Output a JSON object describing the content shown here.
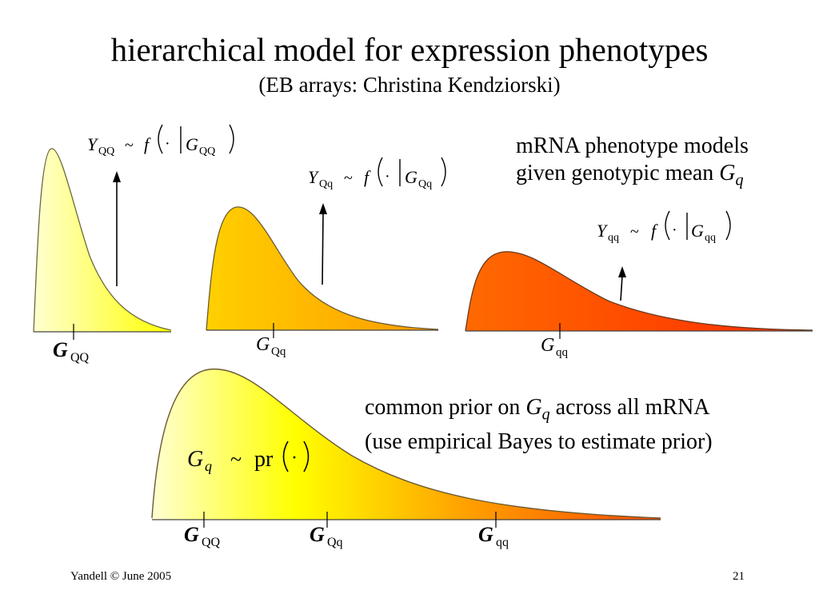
{
  "slide": {
    "title": "hierarchical model for expression phenotypes",
    "subtitle": "(EB arrays: Christina Kendziorski)",
    "note_top": {
      "line1": "mRNA phenotype models",
      "line2_prefix": "given genotypic mean ",
      "sym": "G",
      "sub": "q"
    },
    "note_bottom": {
      "prefix": "common prior on ",
      "sym": "G",
      "sub": "q",
      "suffix": " across all mRNA",
      "line2": "(use empirical Bayes to estimate prior)"
    },
    "footer": {
      "left": "Yandell © June 2005",
      "right": "21"
    }
  },
  "formulas": {
    "qq_upper": {
      "y": "Y",
      "ysub": "QQ",
      "tilde": "~",
      "f": "f",
      "dot": "·",
      "g": "G",
      "gsub": "QQ"
    },
    "qq_mid": {
      "y": "Y",
      "ysub": "Qq",
      "tilde": "~",
      "f": "f",
      "dot": "·",
      "g": "G",
      "gsub": "Qq"
    },
    "qq_lower": {
      "y": "Y",
      "ysub": "qq",
      "tilde": "~",
      "f": "f",
      "dot": "·",
      "g": "G",
      "gsub": "qq"
    },
    "prior": {
      "g": "G",
      "gsub": "q",
      "tilde": "~",
      "pr": "pr",
      "dot": "·"
    }
  },
  "labels": {
    "g_QQ": {
      "sym": "G",
      "sub": "QQ"
    },
    "g_Qq": {
      "sym": "G",
      "sub": "Qq"
    },
    "g_qq": {
      "sym": "G",
      "sub": "qq"
    }
  },
  "colors": {
    "light": "#ffffd2",
    "yellow": "#ffff00",
    "orange": "#ff9a00",
    "red": "#ff2a00",
    "dark_orange": "#f07a00"
  }
}
